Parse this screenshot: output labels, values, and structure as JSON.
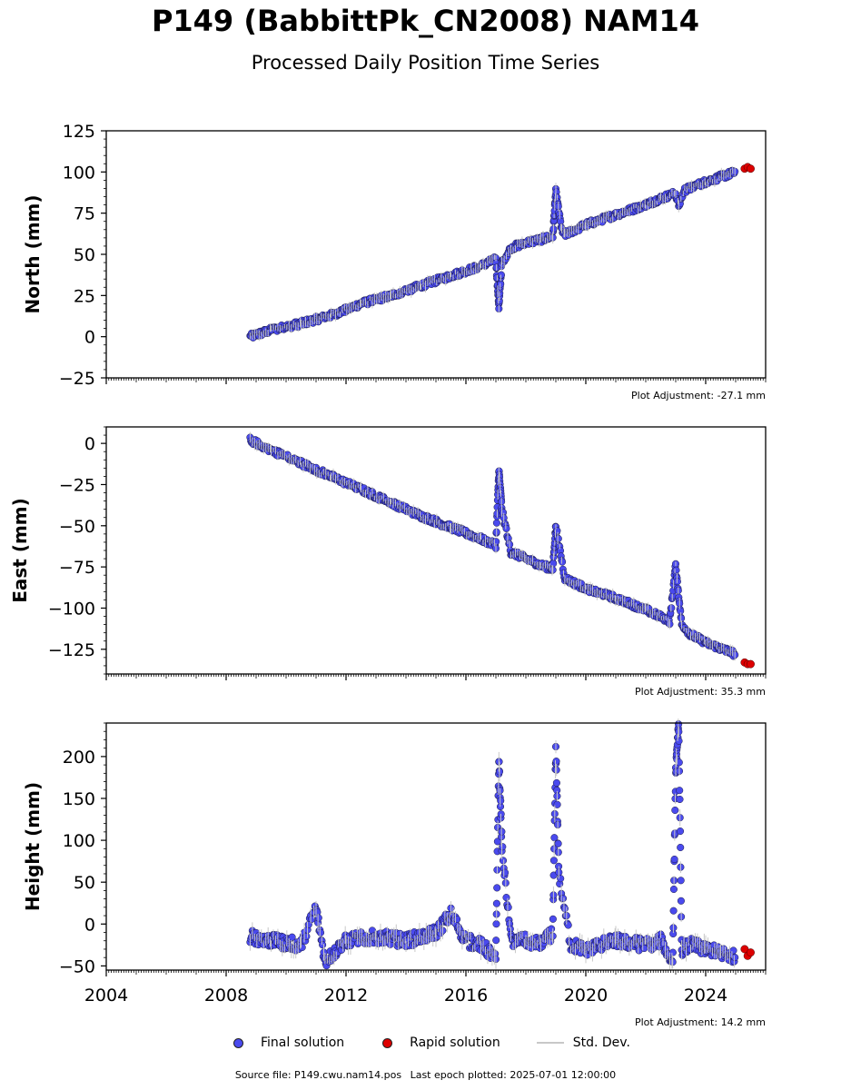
{
  "title": "P149 (BabbittPk_CN2008) NAM14",
  "subtitle": "Processed Daily Position Time Series",
  "legend": {
    "final_label": "Final solution",
    "rapid_label": "Rapid solution",
    "std_label": "Std. Dev.",
    "final_color": "#4a4aee",
    "rapid_color": "#dd0000",
    "std_color": "#c8c8c8"
  },
  "footer": {
    "source": "Source file: P149.cwu.nam14.pos",
    "last_epoch": "Last epoch plotted: 2025-07-01 12:00:00"
  },
  "chart_data": [
    {
      "type": "scatter",
      "ylabel": "North (mm)",
      "ylim": [
        -25,
        125
      ],
      "yticks": [
        -25,
        0,
        25,
        50,
        75,
        100,
        125
      ],
      "xlim": [
        2004,
        2026
      ],
      "adjustment": "Plot Adjustment: -27.1 mm",
      "series": [
        {
          "name": "Final solution",
          "x": [
            2008.8,
            2009.5,
            2010.5,
            2011.5,
            2012.5,
            2013.5,
            2014.5,
            2015.5,
            2016.5,
            2017.0,
            2017.1,
            2017.2,
            2017.5,
            2018.0,
            2018.5,
            2018.9,
            2019.0,
            2019.2,
            2019.3,
            2020.0,
            2021.0,
            2022.0,
            2022.5,
            2023.0,
            2023.1,
            2023.3,
            2024.0,
            2025.0
          ],
          "y": [
            0,
            4,
            8,
            13,
            20,
            25,
            31,
            37,
            43,
            47,
            18,
            45,
            54,
            57,
            59,
            61,
            88,
            64,
            62,
            68,
            74,
            80,
            84,
            87,
            79,
            89,
            94,
            100
          ]
        },
        {
          "name": "Rapid solution",
          "x": [
            2025.3,
            2025.4,
            2025.5
          ],
          "y": [
            102,
            103,
            102
          ]
        }
      ]
    },
    {
      "type": "scatter",
      "ylabel": "East (mm)",
      "ylim": [
        -140,
        10
      ],
      "yticks": [
        -125,
        -100,
        -75,
        -50,
        -25,
        0
      ],
      "xlim": [
        2004,
        2026
      ],
      "adjustment": "Plot Adjustment: 35.3 mm",
      "series": [
        {
          "name": "Final solution",
          "x": [
            2008.8,
            2009.5,
            2010.5,
            2011.5,
            2012.5,
            2013.5,
            2014.5,
            2015.5,
            2016.5,
            2017.0,
            2017.1,
            2017.2,
            2017.5,
            2018.0,
            2018.5,
            2018.9,
            2019.0,
            2019.3,
            2020.0,
            2021.0,
            2022.0,
            2022.8,
            2023.0,
            2023.2,
            2023.5,
            2024.0,
            2025.0
          ],
          "y": [
            2,
            -4,
            -12,
            -20,
            -28,
            -36,
            -44,
            -51,
            -58,
            -62,
            -16,
            -40,
            -66,
            -70,
            -74,
            -76,
            -50,
            -82,
            -88,
            -94,
            -101,
            -108,
            -74,
            -110,
            -116,
            -121,
            -128
          ]
        },
        {
          "name": "Rapid solution",
          "x": [
            2025.3,
            2025.4,
            2025.5
          ],
          "y": [
            -133,
            -134,
            -134
          ]
        }
      ]
    },
    {
      "type": "scatter",
      "ylabel": "Height (mm)",
      "ylim": [
        -55,
        240
      ],
      "yticks": [
        -50,
        0,
        50,
        100,
        150,
        200
      ],
      "xlim": [
        2004,
        2026
      ],
      "xticks": [
        2004,
        2008,
        2012,
        2016,
        2020,
        2024
      ],
      "adjustment": "Plot Adjustment: 14.2 mm",
      "series": [
        {
          "name": "Final solution",
          "x": [
            2008.8,
            2009.5,
            2010.5,
            2011.0,
            2011.3,
            2012.0,
            2013.0,
            2014.0,
            2015.0,
            2015.5,
            2016.0,
            2016.5,
            2017.0,
            2017.1,
            2017.2,
            2017.5,
            2018.0,
            2018.5,
            2018.9,
            2019.0,
            2019.1,
            2019.5,
            2020.0,
            2021.0,
            2022.0,
            2022.5,
            2022.9,
            2023.0,
            2023.1,
            2023.2,
            2023.5,
            2024.0,
            2024.5,
            2025.0
          ],
          "y": [
            -15,
            -20,
            -25,
            20,
            -45,
            -20,
            -15,
            -20,
            -10,
            12,
            -20,
            -25,
            -40,
            200,
            95,
            -20,
            -20,
            -25,
            -10,
            210,
            60,
            -25,
            -30,
            -20,
            -25,
            -20,
            -45,
            180,
            237,
            -30,
            -25,
            -30,
            -35,
            -40
          ]
        },
        {
          "name": "Rapid solution",
          "x": [
            2025.3,
            2025.4,
            2025.5
          ],
          "y": [
            -30,
            -38,
            -34
          ]
        }
      ]
    }
  ]
}
